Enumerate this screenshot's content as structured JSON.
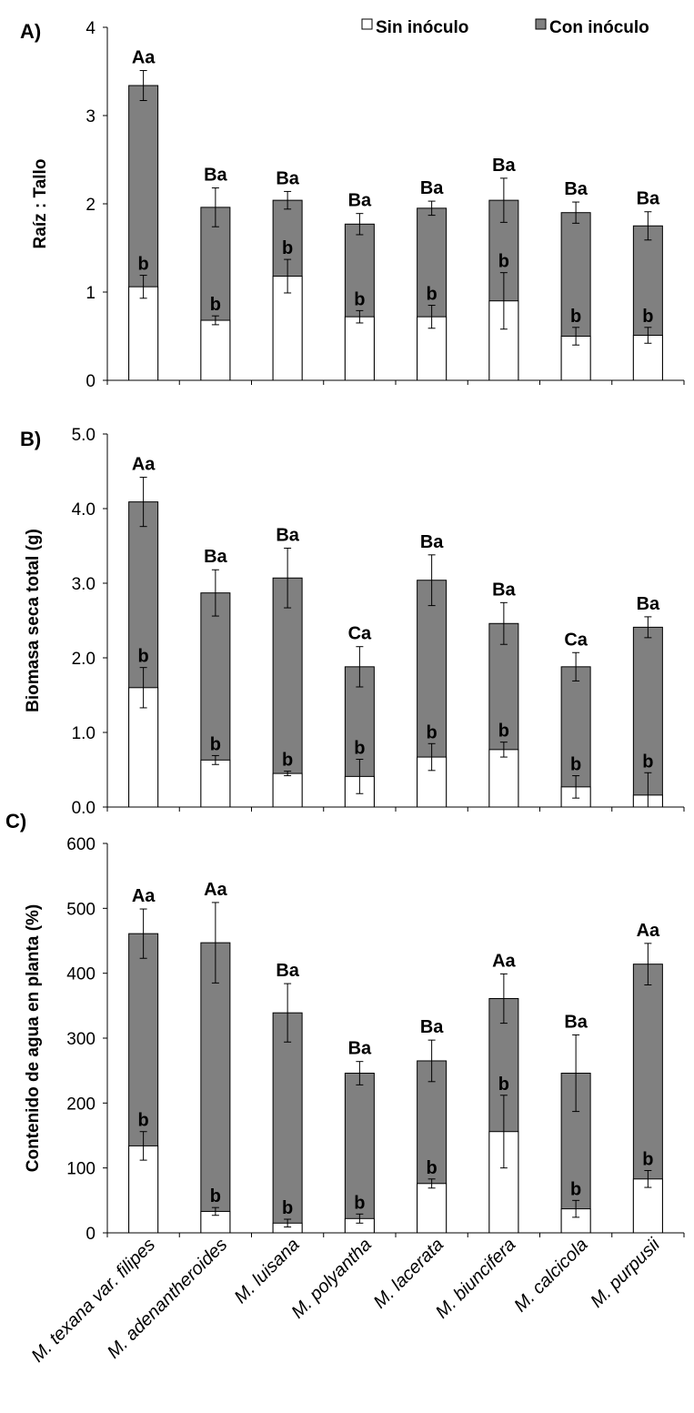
{
  "legend": {
    "items": [
      {
        "label": "Sin inóculo",
        "color": "#ffffff"
      },
      {
        "label": "Con inóculo",
        "color": "#808080"
      }
    ]
  },
  "categories": [
    "M. texana var. filipes",
    "M. adenantheroides",
    "M. luisana",
    "M. polyantha",
    "M. lacerata",
    "M. biuncifera",
    "M. calcicola",
    "M. purpusii"
  ],
  "colors": {
    "sin_inoculo": "#ffffff",
    "con_inoculo": "#808080",
    "axis": "#000000"
  },
  "chart_data": [
    {
      "panel_label": "A)",
      "type": "bar",
      "ylabel": "Raíz : Tallo",
      "ylim": [
        0,
        4
      ],
      "yticks": [
        "0",
        "1",
        "2",
        "3",
        "4"
      ],
      "series": [
        {
          "name": "Sin inóculo",
          "values": [
            1.06,
            0.68,
            1.18,
            0.72,
            0.72,
            0.9,
            0.5,
            0.51
          ],
          "errors": [
            0.13,
            0.05,
            0.19,
            0.07,
            0.13,
            0.32,
            0.1,
            0.09
          ],
          "letters": [
            "b",
            "b",
            "b",
            "b",
            "b",
            "b",
            "b",
            "b"
          ]
        },
        {
          "name": "Con inóculo",
          "values": [
            3.34,
            1.96,
            2.04,
            1.77,
            1.95,
            2.04,
            1.9,
            1.75
          ],
          "errors": [
            0.17,
            0.22,
            0.1,
            0.12,
            0.08,
            0.25,
            0.12,
            0.16
          ],
          "letters": [
            "Aa",
            "Ba",
            "Ba",
            "Ba",
            "Ba",
            "Ba",
            "Ba",
            "Ba"
          ]
        }
      ]
    },
    {
      "panel_label": "B)",
      "type": "bar",
      "ylabel": "Biomasa seca total (g)",
      "ylim": [
        0,
        5
      ],
      "yticks": [
        "0.0",
        "1.0",
        "2.0",
        "3.0",
        "4.0",
        "5.0"
      ],
      "series": [
        {
          "name": "Sin inóculo",
          "values": [
            1.6,
            0.63,
            0.45,
            0.41,
            0.67,
            0.77,
            0.27,
            0.16
          ],
          "errors": [
            0.27,
            0.06,
            0.03,
            0.23,
            0.18,
            0.1,
            0.15,
            0.3
          ],
          "letters": [
            "b",
            "b",
            "b",
            "b",
            "b",
            "b",
            "b",
            "b"
          ]
        },
        {
          "name": "Con inóculo",
          "values": [
            4.09,
            2.87,
            3.07,
            1.88,
            3.04,
            2.46,
            1.88,
            2.41
          ],
          "errors": [
            0.33,
            0.31,
            0.4,
            0.27,
            0.34,
            0.28,
            0.19,
            0.14
          ],
          "letters": [
            "Aa",
            "Ba",
            "Ba",
            "Ca",
            "Ba",
            "Ba",
            "Ca",
            "Ba"
          ]
        }
      ]
    },
    {
      "panel_label": "C)",
      "type": "bar",
      "ylabel": "Contenido de agua en planta (%)",
      "ylim": [
        0,
        600
      ],
      "yticks": [
        "0",
        "100",
        "200",
        "300",
        "400",
        "500",
        "600"
      ],
      "series": [
        {
          "name": "Sin inóculo",
          "values": [
            134,
            33,
            15,
            22,
            76,
            156,
            37,
            83
          ],
          "errors": [
            22,
            6,
            6,
            7,
            7,
            56,
            13,
            13
          ],
          "letters": [
            "b",
            "b",
            "b",
            "b",
            "b",
            "b",
            "b",
            "b"
          ]
        },
        {
          "name": "Con inóculo",
          "values": [
            461,
            447,
            339,
            246,
            265,
            361,
            246,
            414
          ],
          "errors": [
            38,
            62,
            45,
            18,
            32,
            38,
            59,
            32
          ],
          "letters": [
            "Aa",
            "Aa",
            "Ba",
            "Ba",
            "Ba",
            "Aa",
            "Ba",
            "Aa"
          ]
        }
      ]
    }
  ]
}
